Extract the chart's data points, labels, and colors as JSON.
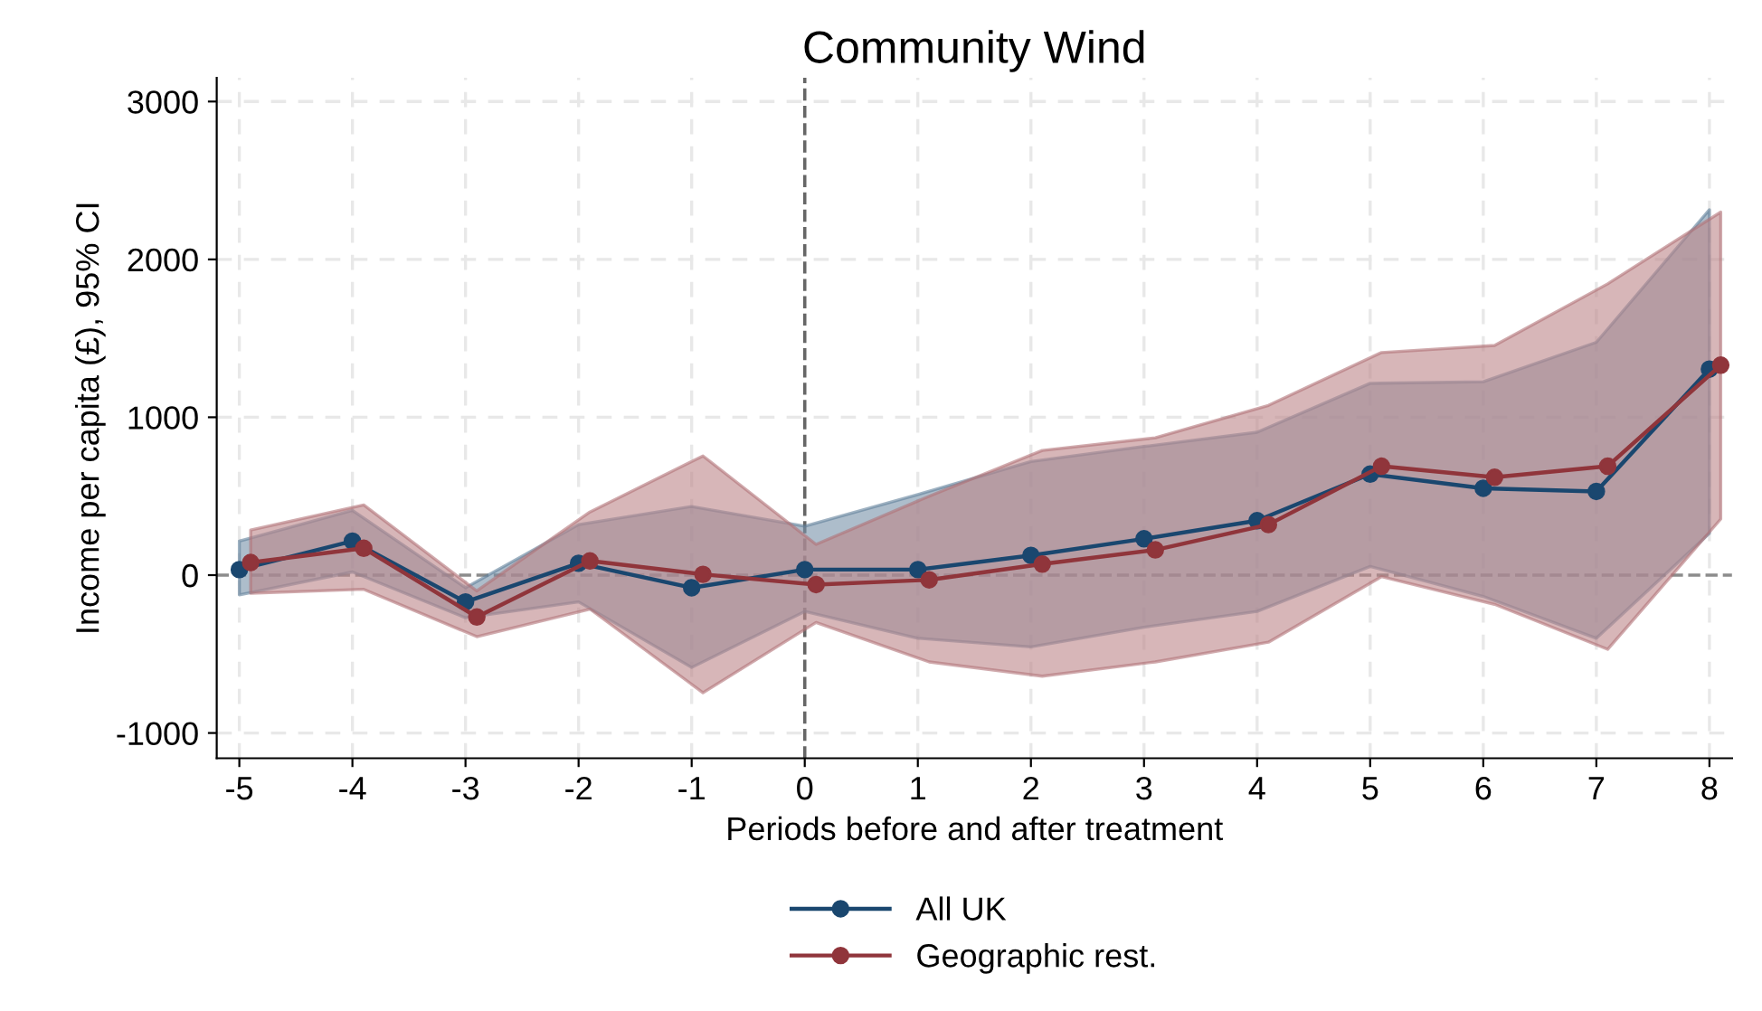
{
  "chart_data": {
    "type": "line",
    "title": "Community Wind",
    "xlabel": "Periods before and after treatment",
    "ylabel": "Income per capita (£), 95% CI",
    "series": [
      {
        "name": "All UK",
        "color": "#1a476f",
        "x": [
          -5,
          -4,
          -3,
          -2,
          -1,
          0,
          1,
          2,
          3,
          4,
          5,
          6,
          7,
          8
        ],
        "values": [
          35,
          215,
          -170,
          75,
          -80,
          35,
          35,
          125,
          230,
          345,
          640,
          550,
          530,
          1305
        ],
        "lower": [
          -125,
          20,
          -270,
          -170,
          -585,
          -230,
          -400,
          -455,
          -330,
          -230,
          55,
          -135,
          -400,
          265
        ],
        "upper": [
          215,
          410,
          -80,
          320,
          435,
          310,
          510,
          720,
          815,
          905,
          1215,
          1225,
          1475,
          2315
        ]
      },
      {
        "name": "Geographic rest.",
        "color": "#90353b",
        "x": [
          -4.9,
          -3.9,
          -2.9,
          -1.9,
          -0.9,
          0.1,
          1.1,
          2.1,
          3.1,
          4.1,
          5.1,
          6.1,
          7.1,
          8.1
        ],
        "values": [
          80,
          170,
          -265,
          90,
          5,
          -60,
          -30,
          70,
          160,
          320,
          690,
          620,
          690,
          1330
        ],
        "lower": [
          -115,
          -90,
          -390,
          -215,
          -745,
          -300,
          -550,
          -640,
          -550,
          -425,
          -10,
          -185,
          -470,
          355
        ],
        "upper": [
          285,
          445,
          -100,
          400,
          755,
          195,
          500,
          790,
          870,
          1075,
          1410,
          1455,
          1845,
          2300
        ]
      }
    ],
    "xlim": [
      -5.2,
      8.2
    ],
    "ylim": [
      -1160,
      3150
    ],
    "xticks": [
      -5,
      -4,
      -3,
      -2,
      -1,
      0,
      1,
      2,
      3,
      4,
      5,
      6,
      7,
      8
    ],
    "yticks": [
      -1000,
      0,
      1000,
      2000,
      3000
    ],
    "ref_lines": [
      {
        "axis": "x",
        "value": 0,
        "color": "#666666",
        "line_style": "dashed"
      },
      {
        "axis": "y",
        "value": 0,
        "color": "#8c8c8c",
        "line_style": "dashed"
      }
    ],
    "grid": true,
    "legend": "bottom",
    "marker": "circle",
    "line_style": "solid"
  }
}
